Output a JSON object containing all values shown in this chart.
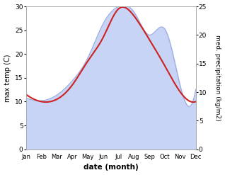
{
  "months": [
    "Jan",
    "Feb",
    "Mar",
    "Apr",
    "May",
    "Jun",
    "Jul",
    "Aug",
    "Sep",
    "Oct",
    "Nov",
    "Dec"
  ],
  "temp": [
    11.5,
    10.0,
    10.5,
    13.5,
    18.5,
    23.5,
    29.5,
    28.0,
    23.0,
    17.5,
    12.0,
    10.0
  ],
  "precip": [
    9.0,
    8.5,
    9.5,
    12.0,
    16.0,
    22.0,
    25.0,
    24.0,
    20.0,
    21.0,
    11.0,
    10.5
  ],
  "temp_color": "#cc2222",
  "precip_fill_color": "#c8d4f5",
  "precip_line_color": "#9aaade",
  "ylabel_left": "max temp (C)",
  "ylabel_right": "med. precipitation (kg/m2)",
  "xlabel": "date (month)",
  "ylim_left": [
    0,
    30
  ],
  "ylim_right": [
    0,
    25
  ],
  "yticks_left": [
    0,
    5,
    10,
    15,
    20,
    25,
    30
  ],
  "yticks_right": [
    0,
    5,
    10,
    15,
    20,
    25
  ],
  "background_color": "#ffffff"
}
